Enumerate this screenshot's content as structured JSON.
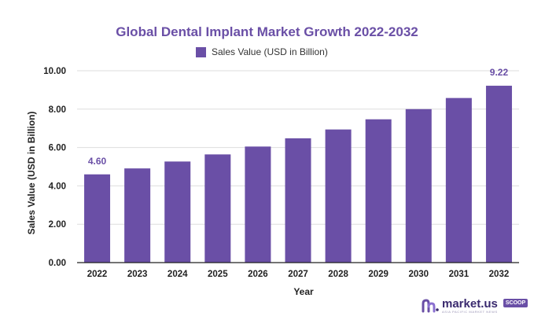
{
  "chart_data": {
    "type": "bar",
    "title": "Global Dental Implant Market Growth 2022-2032",
    "xlabel": "Year",
    "ylabel": "Sales Value (USD in Billion)",
    "ylim": [
      0,
      10
    ],
    "yticks": [
      "0.00",
      "2.00",
      "4.00",
      "6.00",
      "8.00",
      "10.00"
    ],
    "ytick_values": [
      0,
      2,
      4,
      6,
      8,
      10
    ],
    "grid": true,
    "legend_position": "top-center",
    "categories": [
      "2022",
      "2023",
      "2024",
      "2025",
      "2026",
      "2027",
      "2028",
      "2029",
      "2030",
      "2031",
      "2032"
    ],
    "series": [
      {
        "name": "Sales Value (USD in Billion)",
        "color": "#6a4fa6",
        "values": [
          4.6,
          4.91,
          5.27,
          5.64,
          6.05,
          6.48,
          6.94,
          7.47,
          8.0,
          8.58,
          9.22
        ]
      }
    ],
    "data_labels": [
      {
        "category": "2022",
        "text": "4.60"
      },
      {
        "category": "2032",
        "text": "9.22"
      }
    ]
  },
  "branding": {
    "logo_name": "market.us",
    "logo_tagline": "ASIA PACIFIC MARKET NEWS",
    "logo_badge": "SCOOP",
    "logo_color": "#3a2a6e",
    "logo_icon": "market-us-logo-icon"
  }
}
